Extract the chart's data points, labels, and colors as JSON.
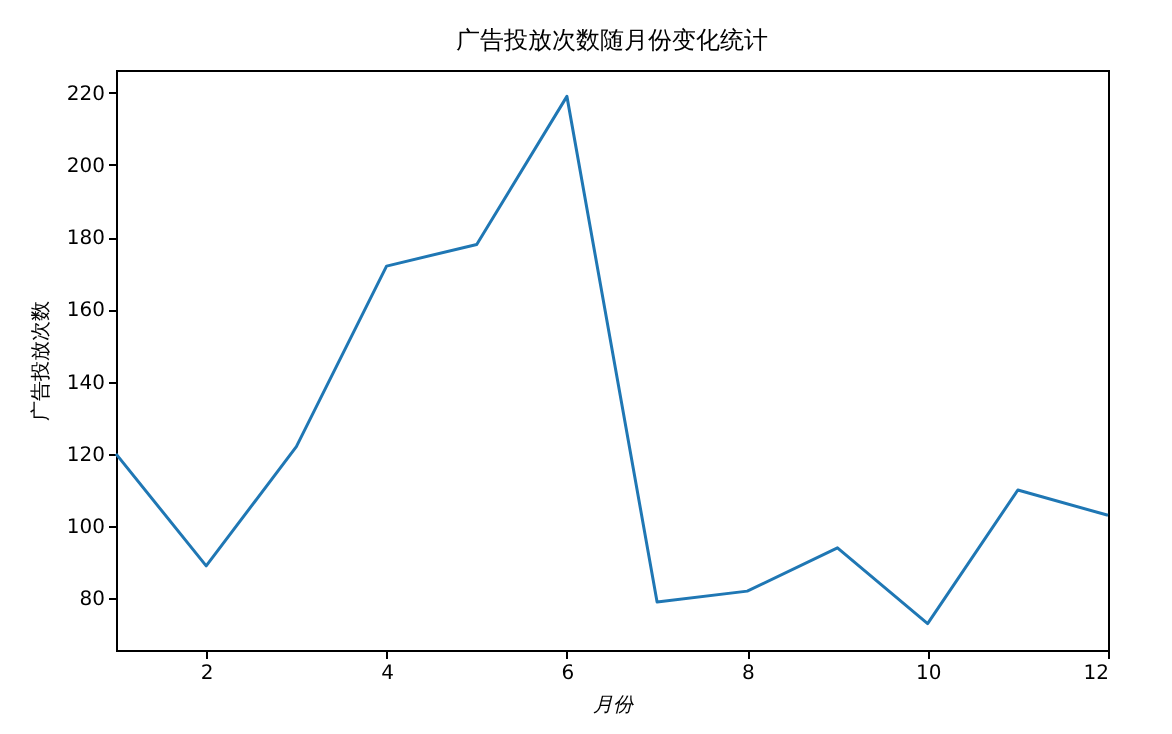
{
  "chart_data": {
    "type": "line",
    "title": "广告投放次数随月份变化统计",
    "xlabel": "月份",
    "ylabel": "广告投放次数",
    "x": [
      1,
      2,
      3,
      4,
      5,
      6,
      7,
      8,
      9,
      10,
      11,
      12
    ],
    "series": [
      {
        "color": "#1f77b4",
        "values": [
          120,
          89,
          122,
          172,
          178,
          219,
          79,
          82,
          94,
          73,
          110,
          103
        ]
      }
    ],
    "xlim": [
      1,
      12
    ],
    "xticks": [
      2,
      4,
      6,
      8,
      10,
      12
    ],
    "ylim": [
      65.7,
      226.3
    ],
    "yticks": [
      80,
      100,
      120,
      140,
      160,
      180,
      200,
      220
    ],
    "grid": false,
    "marker": "none",
    "line_style": "solid"
  }
}
